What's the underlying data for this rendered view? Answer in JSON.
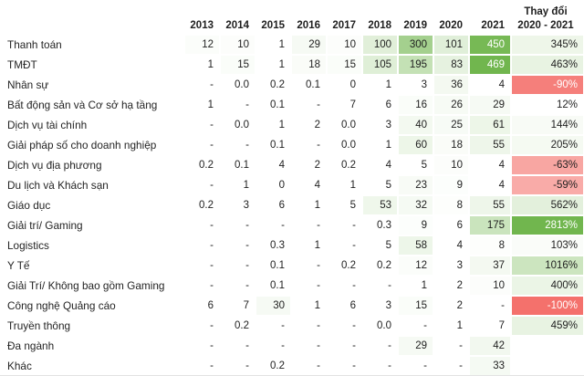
{
  "chart_data": {
    "type": "heatmap",
    "title": "",
    "columns": [
      "2013",
      "2014",
      "2015",
      "2016",
      "2017",
      "2018",
      "2019",
      "2020",
      "2021"
    ],
    "change_column": {
      "label_line1": "Thay đổi",
      "label_line2": "2020 - 2021"
    },
    "rows": [
      {
        "label": "Thanh toán",
        "values": [
          "12",
          "10",
          "1",
          "29",
          "10",
          "100",
          "300",
          "101",
          "450"
        ],
        "change": "345%"
      },
      {
        "label": "TMĐT",
        "values": [
          "1",
          "15",
          "1",
          "18",
          "15",
          "105",
          "195",
          "83",
          "469"
        ],
        "change": "463%"
      },
      {
        "label": "Nhân sự",
        "values": [
          "-",
          "0.0",
          "0.2",
          "0.1",
          "0",
          "1",
          "3",
          "36",
          "4"
        ],
        "change": "-90%"
      },
      {
        "label": "Bất động sản và Cơ sở hạ tầng",
        "values": [
          "1",
          "-",
          "0.1",
          "-",
          "7",
          "6",
          "16",
          "26",
          "29"
        ],
        "change": "12%"
      },
      {
        "label": "Dịch vụ tài chính",
        "values": [
          "-",
          "0.0",
          "1",
          "2",
          "0.0",
          "3",
          "40",
          "25",
          "61"
        ],
        "change": "144%"
      },
      {
        "label": "Giải pháp số cho doanh nghiệp",
        "values": [
          "-",
          "-",
          "0.1",
          "-",
          "0.0",
          "1",
          "60",
          "18",
          "55"
        ],
        "change": "205%"
      },
      {
        "label": "Dịch vụ địa phương",
        "values": [
          "0.2",
          "0.1",
          "4",
          "2",
          "0.2",
          "4",
          "5",
          "10",
          "4"
        ],
        "change": "-63%"
      },
      {
        "label": "Du lịch và Khách sạn",
        "values": [
          "-",
          "1",
          "0",
          "4",
          "1",
          "5",
          "23",
          "9",
          "4"
        ],
        "change": "-59%"
      },
      {
        "label": "Giáo dục",
        "values": [
          "0.2",
          "3",
          "6",
          "1",
          "5",
          "53",
          "32",
          "8",
          "55"
        ],
        "change": "562%"
      },
      {
        "label": "Giải trí/ Gaming",
        "values": [
          "-",
          "-",
          "-",
          "-",
          "-",
          "0.3",
          "9",
          "6",
          "175"
        ],
        "change": "2813%"
      },
      {
        "label": "Logistics",
        "values": [
          "-",
          "-",
          "0.3",
          "1",
          "-",
          "5",
          "58",
          "4",
          "8"
        ],
        "change": "103%"
      },
      {
        "label": "Y Tế",
        "values": [
          "-",
          "-",
          "0.1",
          "-",
          "0.2",
          "0.2",
          "12",
          "3",
          "37"
        ],
        "change": "1016%"
      },
      {
        "label": "Giải Trí/ Không bao gồm Gaming",
        "values": [
          "-",
          "-",
          "0.1",
          "-",
          "-",
          "-",
          "1",
          "2",
          "10"
        ],
        "change": "400%"
      },
      {
        "label": "Công nghệ Quảng cáo",
        "values": [
          "6",
          "7",
          "30",
          "1",
          "6",
          "3",
          "15",
          "2",
          "-"
        ],
        "change": "-100%"
      },
      {
        "label": "Truyền thông",
        "values": [
          "-",
          "0.2",
          "-",
          "-",
          "-",
          "0.0",
          "-",
          "1",
          "7"
        ],
        "change": "459%"
      },
      {
        "label": "Đa ngành",
        "values": [
          "-",
          "-",
          "-",
          "-",
          "-",
          "-",
          "29",
          "-",
          "42"
        ],
        "change": ""
      },
      {
        "label": "Khác",
        "values": [
          "-",
          "-",
          "0.2",
          "-",
          "-",
          "-",
          "-",
          "-",
          "33"
        ],
        "change": ""
      }
    ],
    "value_scale": {
      "max": 469,
      "positive_color": "#71b64e"
    },
    "change_scale": {
      "positive_max": 2813,
      "negative_max": 100,
      "positive_color": "#71b64e",
      "negative_color": "#f4716c"
    },
    "colors": {
      "text": "#1f1f1f",
      "text_on_dark": "#ffffff"
    }
  }
}
